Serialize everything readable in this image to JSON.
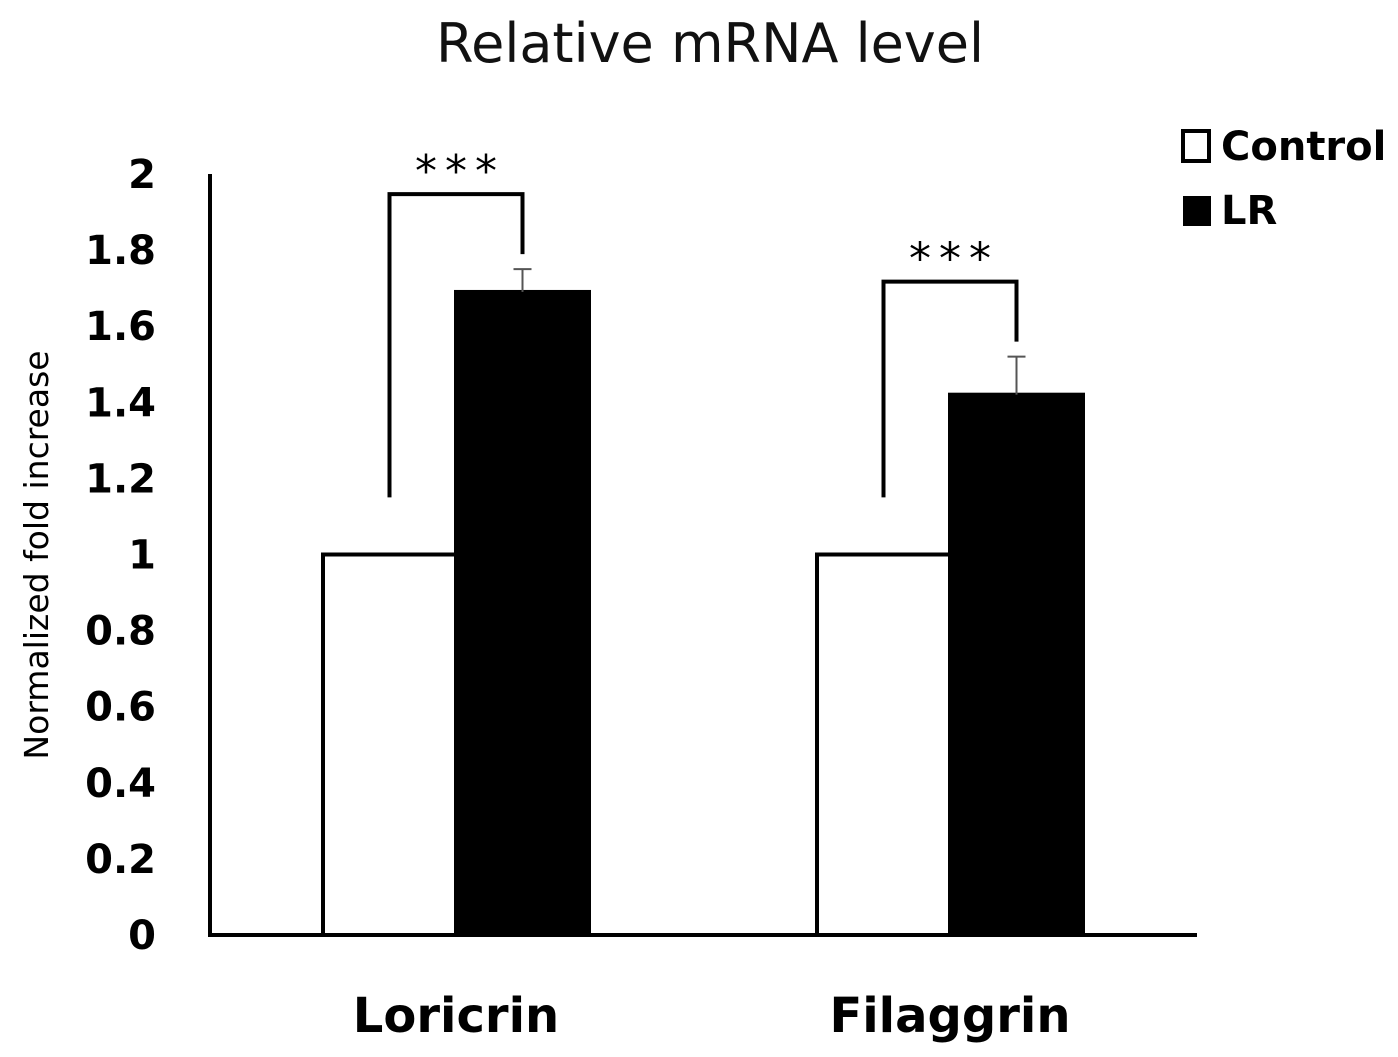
{
  "chart_data": {
    "type": "bar",
    "title": "Relative mRNA level",
    "ylabel": "Normalized fold increase",
    "xlabel": "",
    "categories": [
      "Loricrin",
      "Filaggrin"
    ],
    "series": [
      {
        "name": "Control",
        "values": [
          1.0,
          1.0
        ],
        "errors": [
          0,
          0
        ],
        "color": "#ffffff"
      },
      {
        "name": "LR",
        "values": [
          1.69,
          1.42
        ],
        "errors": [
          0.06,
          0.1
        ],
        "color": "#000000"
      }
    ],
    "ylim": [
      0,
      2
    ],
    "yticks": [
      "0",
      "0.2",
      "0.4",
      "0.6",
      "0.8",
      "1",
      "1.2",
      "1.4",
      "1.6",
      "1.8",
      "2"
    ],
    "ytick_values": [
      0,
      0.2,
      0.4,
      0.6,
      0.8,
      1,
      1.2,
      1.4,
      1.6,
      1.8,
      2
    ],
    "significance": [
      "***",
      "***"
    ],
    "grid": false,
    "legend_position": "top-right"
  }
}
